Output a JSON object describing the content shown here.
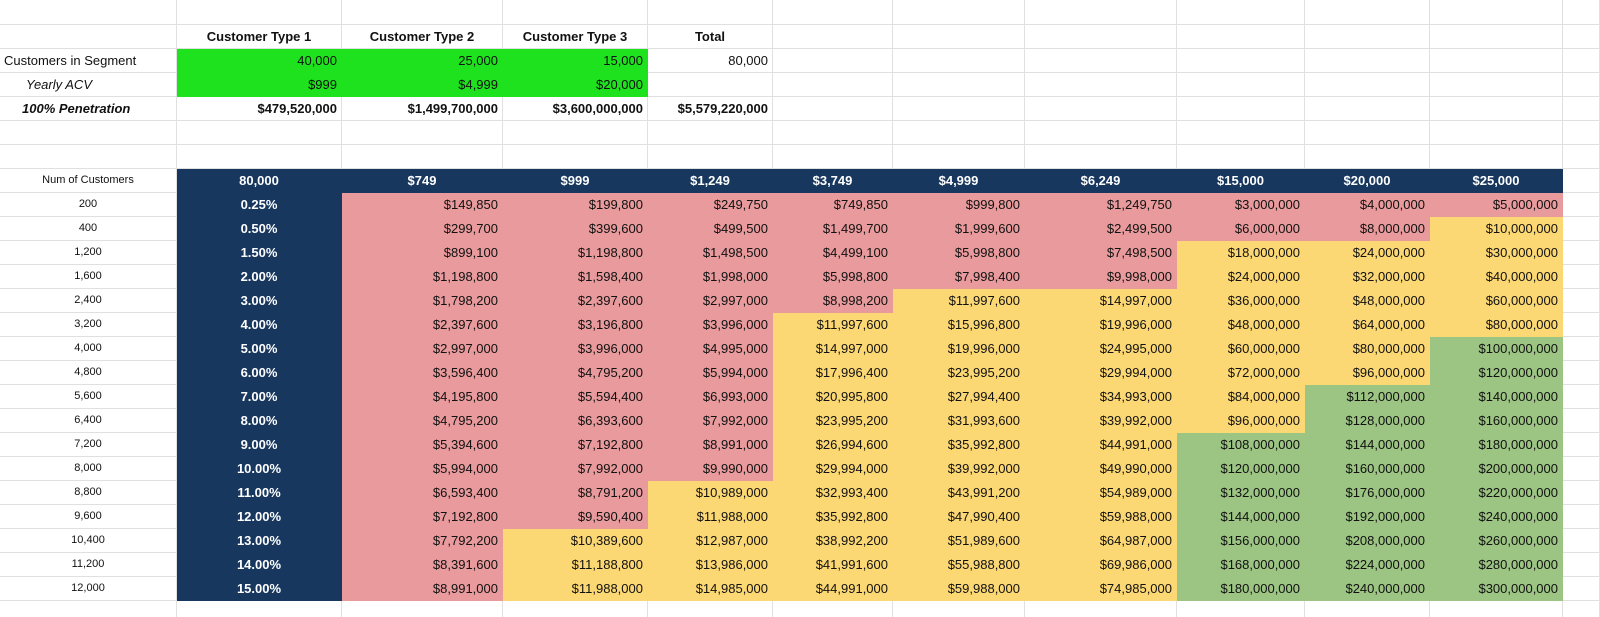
{
  "summary": {
    "header": [
      "Customer Type 1",
      "Customer Type 2",
      "Customer Type 3",
      "Total"
    ],
    "rows": [
      {
        "label": "Customers in Segment",
        "values": [
          "40,000",
          "25,000",
          "15,000",
          "80,000"
        ]
      },
      {
        "label": "Yearly ACV",
        "values": [
          "$999",
          "$4,999",
          "$20,000"
        ]
      },
      {
        "label": "100% Penetration",
        "values": [
          "$479,520,000",
          "$1,499,700,000",
          "$3,600,000,000",
          "$5,579,220,000"
        ]
      }
    ],
    "input_color": "#1fe21f"
  },
  "matrix": {
    "corner": "Num of Customers",
    "header_total": "80,000",
    "prices": [
      "$749",
      "$999",
      "$1,249",
      "$3,749",
      "$4,999",
      "$6,249",
      "$15,000",
      "$20,000",
      "$25,000"
    ],
    "palette": {
      "r": "#e89a9c",
      "y": "#fcd874",
      "g": "#9cc483"
    },
    "rows": [
      {
        "customers": "200",
        "penetration": "0.25%",
        "fills": "rrrrrrrrr",
        "values": [
          "$149,850",
          "$199,800",
          "$249,750",
          "$749,850",
          "$999,800",
          "$1,249,750",
          "$3,000,000",
          "$4,000,000",
          "$5,000,000"
        ]
      },
      {
        "customers": "400",
        "penetration": "0.50%",
        "fills": "rrrrrrrry",
        "values": [
          "$299,700",
          "$399,600",
          "$499,500",
          "$1,499,700",
          "$1,999,600",
          "$2,499,500",
          "$6,000,000",
          "$8,000,000",
          "$10,000,000"
        ]
      },
      {
        "customers": "1,200",
        "penetration": "1.50%",
        "fills": "rrrrrryyy",
        "values": [
          "$899,100",
          "$1,198,800",
          "$1,498,500",
          "$4,499,100",
          "$5,998,800",
          "$7,498,500",
          "$18,000,000",
          "$24,000,000",
          "$30,000,000"
        ]
      },
      {
        "customers": "1,600",
        "penetration": "2.00%",
        "fills": "rrrrrryyy",
        "values": [
          "$1,198,800",
          "$1,598,400",
          "$1,998,000",
          "$5,998,800",
          "$7,998,400",
          "$9,998,000",
          "$24,000,000",
          "$32,000,000",
          "$40,000,000"
        ]
      },
      {
        "customers": "2,400",
        "penetration": "3.00%",
        "fills": "rrrryyyyy",
        "values": [
          "$1,798,200",
          "$2,397,600",
          "$2,997,000",
          "$8,998,200",
          "$11,997,600",
          "$14,997,000",
          "$36,000,000",
          "$48,000,000",
          "$60,000,000"
        ]
      },
      {
        "customers": "3,200",
        "penetration": "4.00%",
        "fills": "rrryyyyyy",
        "values": [
          "$2,397,600",
          "$3,196,800",
          "$3,996,000",
          "$11,997,600",
          "$15,996,800",
          "$19,996,000",
          "$48,000,000",
          "$64,000,000",
          "$80,000,000"
        ]
      },
      {
        "customers": "4,000",
        "penetration": "5.00%",
        "fills": "rrryyyyyg",
        "values": [
          "$2,997,000",
          "$3,996,000",
          "$4,995,000",
          "$14,997,000",
          "$19,996,000",
          "$24,995,000",
          "$60,000,000",
          "$80,000,000",
          "$100,000,000"
        ]
      },
      {
        "customers": "4,800",
        "penetration": "6.00%",
        "fills": "rrryyyyyg",
        "values": [
          "$3,596,400",
          "$4,795,200",
          "$5,994,000",
          "$17,996,400",
          "$23,995,200",
          "$29,994,000",
          "$72,000,000",
          "$96,000,000",
          "$120,000,000"
        ]
      },
      {
        "customers": "5,600",
        "penetration": "7.00%",
        "fills": "rrryyyygg",
        "values": [
          "$4,195,800",
          "$5,594,400",
          "$6,993,000",
          "$20,995,800",
          "$27,994,400",
          "$34,993,000",
          "$84,000,000",
          "$112,000,000",
          "$140,000,000"
        ]
      },
      {
        "customers": "6,400",
        "penetration": "8.00%",
        "fills": "rrryyyygg",
        "values": [
          "$4,795,200",
          "$6,393,600",
          "$7,992,000",
          "$23,995,200",
          "$31,993,600",
          "$39,992,000",
          "$96,000,000",
          "$128,000,000",
          "$160,000,000"
        ]
      },
      {
        "customers": "7,200",
        "penetration": "9.00%",
        "fills": "rrryyyggg",
        "values": [
          "$5,394,600",
          "$7,192,800",
          "$8,991,000",
          "$26,994,600",
          "$35,992,800",
          "$44,991,000",
          "$108,000,000",
          "$144,000,000",
          "$180,000,000"
        ]
      },
      {
        "customers": "8,000",
        "penetration": "10.00%",
        "fills": "rrryyyggg",
        "values": [
          "$5,994,000",
          "$7,992,000",
          "$9,990,000",
          "$29,994,000",
          "$39,992,000",
          "$49,990,000",
          "$120,000,000",
          "$160,000,000",
          "$200,000,000"
        ]
      },
      {
        "customers": "8,800",
        "penetration": "11.00%",
        "fills": "rryyyyggg",
        "values": [
          "$6,593,400",
          "$8,791,200",
          "$10,989,000",
          "$32,993,400",
          "$43,991,200",
          "$54,989,000",
          "$132,000,000",
          "$176,000,000",
          "$220,000,000"
        ]
      },
      {
        "customers": "9,600",
        "penetration": "12.00%",
        "fills": "rryyyyggg",
        "values": [
          "$7,192,800",
          "$9,590,400",
          "$11,988,000",
          "$35,992,800",
          "$47,990,400",
          "$59,988,000",
          "$144,000,000",
          "$192,000,000",
          "$240,000,000"
        ]
      },
      {
        "customers": "10,400",
        "penetration": "13.00%",
        "fills": "ryyyyyggg",
        "values": [
          "$7,792,200",
          "$10,389,600",
          "$12,987,000",
          "$38,992,200",
          "$51,989,600",
          "$64,987,000",
          "$156,000,000",
          "$208,000,000",
          "$260,000,000"
        ]
      },
      {
        "customers": "11,200",
        "penetration": "14.00%",
        "fills": "ryyyyyggg",
        "values": [
          "$8,391,600",
          "$11,188,800",
          "$13,986,000",
          "$41,991,600",
          "$55,988,800",
          "$69,986,000",
          "$168,000,000",
          "$224,000,000",
          "$280,000,000"
        ]
      },
      {
        "customers": "12,000",
        "penetration": "15.00%",
        "fills": "ryyyyyggg",
        "values": [
          "$8,991,000",
          "$11,988,000",
          "$14,985,000",
          "$44,991,000",
          "$59,988,000",
          "$74,985,000",
          "$180,000,000",
          "$240,000,000",
          "$300,000,000"
        ]
      }
    ]
  }
}
